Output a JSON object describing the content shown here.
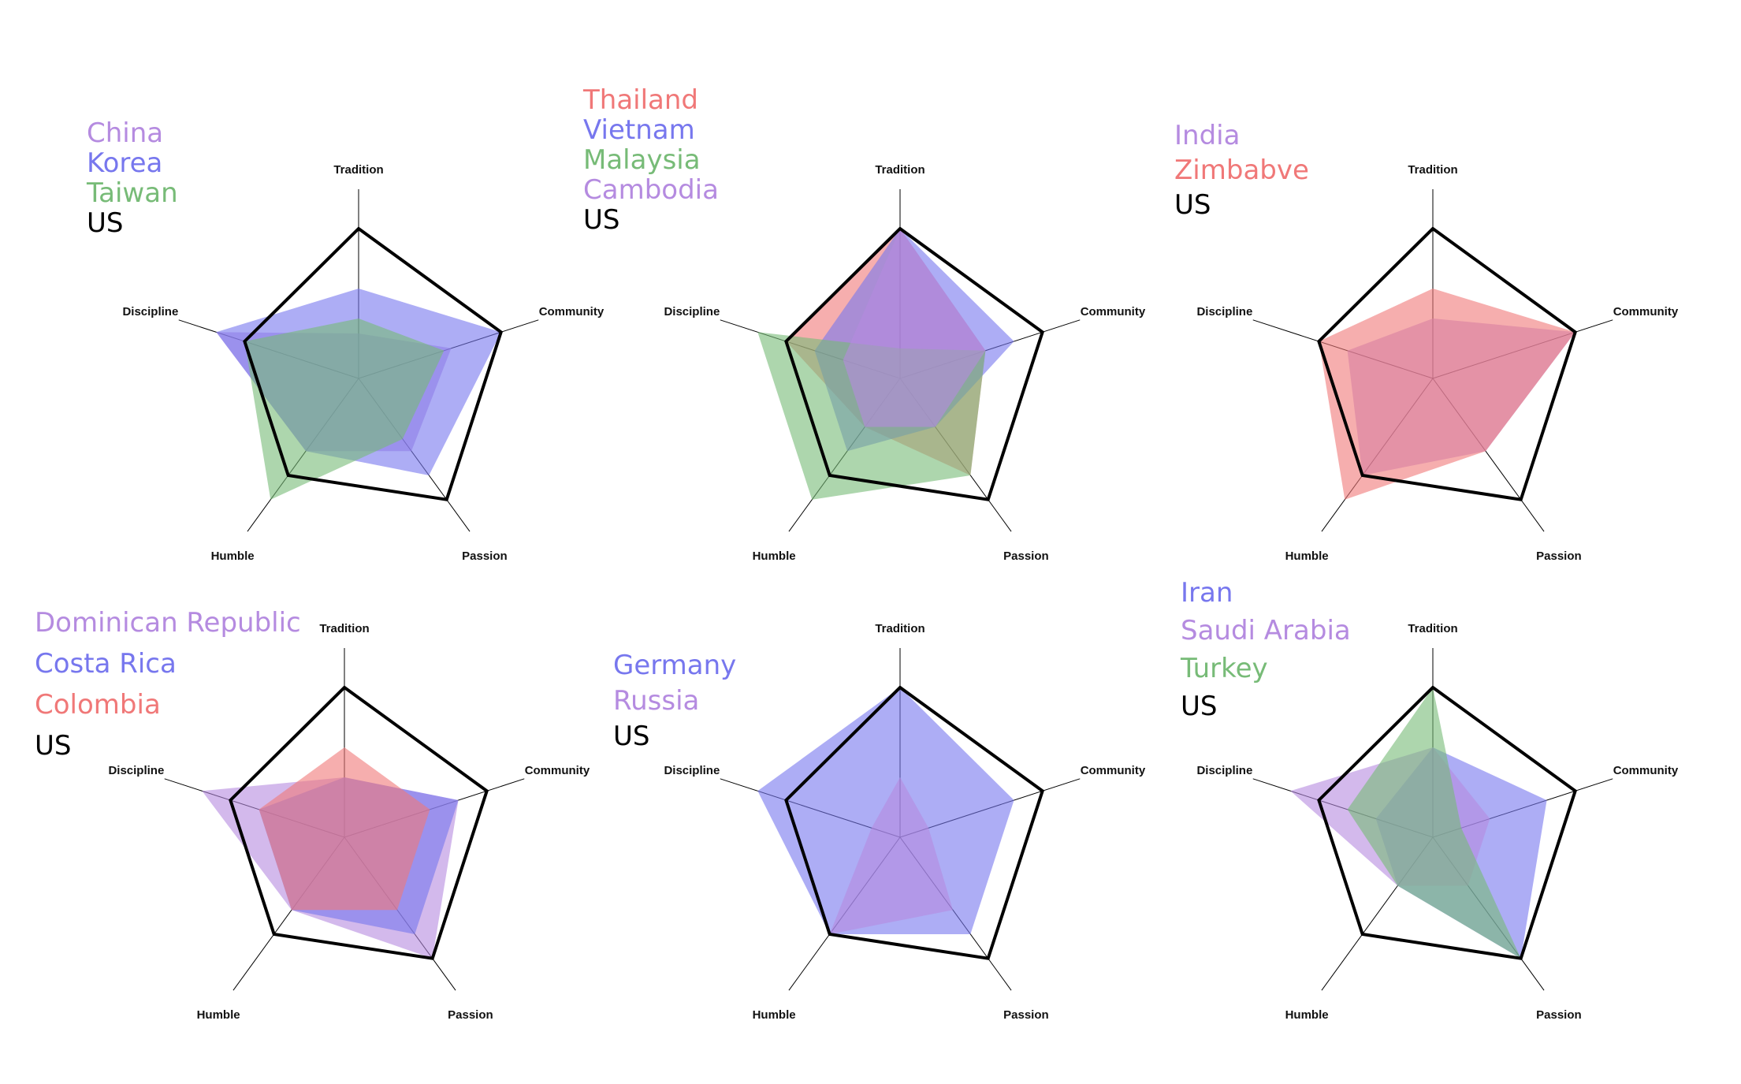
{
  "colors": {
    "red": "#f07878",
    "blue": "#7777ee",
    "green": "#77bb77",
    "purple": "#b58be0",
    "us": "#000000"
  },
  "chart_data": [
    {
      "type": "radar",
      "axes": [
        "Tradition",
        "Community",
        "Passion",
        "Humble",
        "Discipline"
      ],
      "range": [
        0,
        100
      ],
      "series": [
        {
          "name": "China",
          "color": "purple",
          "values": [
            30,
            65,
            60,
            60,
            100
          ]
        },
        {
          "name": "Korea",
          "color": "blue",
          "values": [
            60,
            100,
            80,
            60,
            100
          ]
        },
        {
          "name": "Taiwan",
          "color": "green",
          "values": [
            40,
            60,
            50,
            100,
            80
          ]
        },
        {
          "name": "US",
          "color": "us",
          "values": [
            100,
            100,
            100,
            80,
            80
          ]
        }
      ]
    },
    {
      "type": "radar",
      "axes": [
        "Tradition",
        "Community",
        "Passion",
        "Humble",
        "Discipline"
      ],
      "range": [
        0,
        100
      ],
      "series": [
        {
          "name": "Thailand",
          "color": "red",
          "values": [
            100,
            60,
            80,
            40,
            80
          ]
        },
        {
          "name": "Vietnam",
          "color": "blue",
          "values": [
            100,
            80,
            40,
            60,
            60
          ]
        },
        {
          "name": "Malaysia",
          "color": "green",
          "values": [
            20,
            60,
            80,
            100,
            100
          ]
        },
        {
          "name": "Cambodia",
          "color": "purple",
          "values": [
            100,
            60,
            40,
            40,
            40
          ]
        },
        {
          "name": "US",
          "color": "us",
          "values": [
            100,
            100,
            100,
            80,
            80
          ]
        }
      ]
    },
    {
      "type": "radar",
      "axes": [
        "Tradition",
        "Community",
        "Passion",
        "Humble",
        "Discipline"
      ],
      "range": [
        0,
        100
      ],
      "series": [
        {
          "name": "India",
          "color": "purple",
          "values": [
            40,
            100,
            60,
            80,
            60
          ]
        },
        {
          "name": "Zimbabve",
          "color": "red",
          "values": [
            60,
            100,
            60,
            100,
            80
          ]
        },
        {
          "name": "US",
          "color": "us",
          "values": [
            100,
            100,
            100,
            80,
            80
          ]
        }
      ]
    },
    {
      "type": "radar",
      "axes": [
        "Tradition",
        "Community",
        "Passion",
        "Humble",
        "Discipline"
      ],
      "range": [
        0,
        100
      ],
      "series": [
        {
          "name": "Dominican Republic",
          "color": "purple",
          "values": [
            40,
            80,
            100,
            60,
            100
          ]
        },
        {
          "name": "Costa Rica",
          "color": "blue",
          "values": [
            40,
            80,
            80,
            60,
            60
          ]
        },
        {
          "name": "Colombia",
          "color": "red",
          "values": [
            60,
            60,
            60,
            60,
            60
          ]
        },
        {
          "name": "US",
          "color": "us",
          "values": [
            100,
            100,
            100,
            80,
            80
          ]
        }
      ]
    },
    {
      "type": "radar",
      "axes": [
        "Tradition",
        "Community",
        "Passion",
        "Humble",
        "Discipline"
      ],
      "range": [
        0,
        100
      ],
      "series": [
        {
          "name": "Germany",
          "color": "blue",
          "values": [
            100,
            80,
            80,
            80,
            100
          ]
        },
        {
          "name": "Russia",
          "color": "purple",
          "values": [
            40,
            20,
            60,
            80,
            20
          ]
        },
        {
          "name": "US",
          "color": "us",
          "values": [
            100,
            100,
            100,
            80,
            80
          ]
        }
      ]
    },
    {
      "type": "radar",
      "axes": [
        "Tradition",
        "Community",
        "Passion",
        "Humble",
        "Discipline"
      ],
      "range": [
        0,
        100
      ],
      "series": [
        {
          "name": "Iran",
          "color": "blue",
          "values": [
            60,
            80,
            100,
            40,
            40
          ]
        },
        {
          "name": "Saudi Arabia",
          "color": "purple",
          "values": [
            60,
            40,
            40,
            40,
            100
          ]
        },
        {
          "name": "Turkey",
          "color": "green",
          "values": [
            100,
            20,
            100,
            40,
            60
          ]
        },
        {
          "name": "US",
          "color": "us",
          "values": [
            100,
            100,
            100,
            80,
            80
          ]
        }
      ]
    }
  ]
}
